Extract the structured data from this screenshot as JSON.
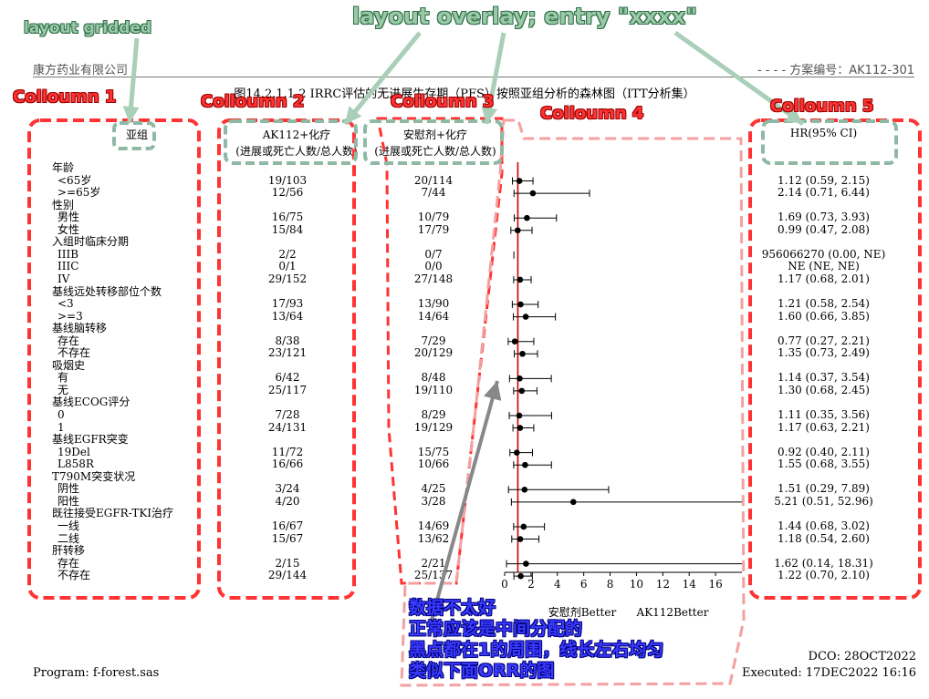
{
  "header": {
    "company": "康方药业有限公司",
    "protocol": "- - - - 方案编号：AK112-301"
  },
  "title": "图14.2.1.1.2 IRRC评估的无进展生存期（PFS）按照亚组分析的森林图（ITT分析集）",
  "columns": {
    "subgroup": "亚组",
    "arm1_line1": "AK112+化疗",
    "arm1_line2": "(进展或死亡人数/总人数)",
    "arm2_line1": "安慰剂+化疗",
    "arm2_line2": "(进展或死亡人数/总人数)",
    "hr": "HR(95% CI)"
  },
  "rows": [
    {
      "label": "年龄",
      "header": true
    },
    {
      "label": "<65岁",
      "a": "19/103",
      "b": "20/114",
      "hr": "1.12 (0.59, 2.15)"
    },
    {
      "label": ">=65岁",
      "a": "12/56",
      "b": "7/44",
      "hr": "2.14 (0.71, 6.44)"
    },
    {
      "label": "性别",
      "header": true
    },
    {
      "label": "男性",
      "a": "16/75",
      "b": "10/79",
      "hr": "1.69 (0.73, 3.93)"
    },
    {
      "label": "女性",
      "a": "15/84",
      "b": "17/79",
      "hr": "0.99 (0.47, 2.08)"
    },
    {
      "label": "入组时临床分期",
      "header": true
    },
    {
      "label": "IIIB",
      "a": "2/2",
      "b": "0/7",
      "hr": "956066270 (0.00, NE)"
    },
    {
      "label": "IIIC",
      "a": "0/1",
      "b": "0/0",
      "hr": "NE (NE, NE)"
    },
    {
      "label": "IV",
      "a": "29/152",
      "b": "27/148",
      "hr": "1.17 (0.68, 2.01)"
    },
    {
      "label": "基线远处转移部位个数",
      "header": true
    },
    {
      "label": "<3",
      "a": "17/93",
      "b": "13/90",
      "hr": "1.21 (0.58, 2.54)"
    },
    {
      "label": ">=3",
      "a": "13/64",
      "b": "14/64",
      "hr": "1.60 (0.66, 3.85)"
    },
    {
      "label": "基线脑转移",
      "header": true
    },
    {
      "label": "存在",
      "a": "8/38",
      "b": "7/29",
      "hr": "0.77 (0.27, 2.21)"
    },
    {
      "label": "不存在",
      "a": "23/121",
      "b": "20/129",
      "hr": "1.35 (0.73, 2.49)"
    },
    {
      "label": "吸烟史",
      "header": true
    },
    {
      "label": "有",
      "a": "6/42",
      "b": "8/48",
      "hr": "1.14 (0.37, 3.54)"
    },
    {
      "label": "无",
      "a": "25/117",
      "b": "19/110",
      "hr": "1.30 (0.68, 2.45)"
    },
    {
      "label": "基线ECOG评分",
      "header": true
    },
    {
      "label": "0",
      "a": "7/28",
      "b": "8/29",
      "hr": "1.11 (0.35, 3.56)"
    },
    {
      "label": "1",
      "a": "24/131",
      "b": "19/129",
      "hr": "1.17 (0.63, 2.21)"
    },
    {
      "label": "基线EGFR突变",
      "header": true
    },
    {
      "label": "19Del",
      "a": "11/72",
      "b": "15/75",
      "hr": "0.92 (0.40, 2.11)"
    },
    {
      "label": "L858R",
      "a": "16/66",
      "b": "10/66",
      "hr": "1.55 (0.68, 3.55)"
    },
    {
      "label": "T790M突变状况",
      "header": true
    },
    {
      "label": "阴性",
      "a": "3/24",
      "b": "4/25",
      "hr": "1.51 (0.29, 7.89)"
    },
    {
      "label": "阳性",
      "a": "4/20",
      "b": "3/28",
      "hr": "5.21 (0.51, 52.96)"
    },
    {
      "label": "既往接受EGFR-TKI治疗",
      "header": true
    },
    {
      "label": "一线",
      "a": "16/67",
      "b": "14/69",
      "hr": "1.44 (0.68, 3.02)"
    },
    {
      "label": "二线",
      "a": "15/67",
      "b": "13/62",
      "hr": "1.18 (0.54, 2.60)"
    },
    {
      "label": "肝转移",
      "header": true
    },
    {
      "label": "存在",
      "a": "2/15",
      "b": "2/21",
      "hr": "1.62 (0.14, 18.31)"
    },
    {
      "label": "不存在",
      "a": "29/144",
      "b": "25/137",
      "hr": "1.22 (0.70, 2.10)"
    }
  ],
  "chart_data": {
    "type": "forest",
    "xlim": [
      0,
      18
    ],
    "xticks": [
      0,
      2,
      4,
      6,
      8,
      10,
      12,
      14,
      16
    ],
    "reference_line": 1,
    "reference_color": "#cc0000",
    "xlabel_left": "安慰剂Better",
    "xlabel_right": "AK112Better",
    "points": [
      {
        "row": 1,
        "hr": 1.12,
        "lo": 0.59,
        "hi": 2.15
      },
      {
        "row": 2,
        "hr": 2.14,
        "lo": 0.71,
        "hi": 6.44
      },
      {
        "row": 4,
        "hr": 1.69,
        "lo": 0.73,
        "hi": 3.93
      },
      {
        "row": 5,
        "hr": 0.99,
        "lo": 0.47,
        "hi": 2.08
      },
      {
        "row": 7,
        "hr": 0.0,
        "lo": 0.0,
        "hi": 0.0,
        "tick_only": true
      },
      {
        "row": 9,
        "hr": 1.17,
        "lo": 0.68,
        "hi": 2.01
      },
      {
        "row": 11,
        "hr": 1.21,
        "lo": 0.58,
        "hi": 2.54
      },
      {
        "row": 12,
        "hr": 1.6,
        "lo": 0.66,
        "hi": 3.85
      },
      {
        "row": 14,
        "hr": 0.77,
        "lo": 0.27,
        "hi": 2.21
      },
      {
        "row": 15,
        "hr": 1.35,
        "lo": 0.73,
        "hi": 2.49
      },
      {
        "row": 17,
        "hr": 1.14,
        "lo": 0.37,
        "hi": 3.54
      },
      {
        "row": 18,
        "hr": 1.3,
        "lo": 0.68,
        "hi": 2.45
      },
      {
        "row": 20,
        "hr": 1.11,
        "lo": 0.35,
        "hi": 3.56
      },
      {
        "row": 21,
        "hr": 1.17,
        "lo": 0.63,
        "hi": 2.21
      },
      {
        "row": 23,
        "hr": 0.92,
        "lo": 0.4,
        "hi": 2.11
      },
      {
        "row": 24,
        "hr": 1.55,
        "lo": 0.68,
        "hi": 3.55
      },
      {
        "row": 26,
        "hr": 1.51,
        "lo": 0.29,
        "hi": 7.89
      },
      {
        "row": 27,
        "hr": 5.21,
        "lo": 0.51,
        "hi": 52.96
      },
      {
        "row": 29,
        "hr": 1.44,
        "lo": 0.68,
        "hi": 3.02
      },
      {
        "row": 30,
        "hr": 1.18,
        "lo": 0.54,
        "hi": 2.6
      },
      {
        "row": 32,
        "hr": 1.62,
        "lo": 0.14,
        "hi": 18.31
      },
      {
        "row": 33,
        "hr": 1.22,
        "lo": 0.7,
        "hi": 2.1
      }
    ]
  },
  "annotations": {
    "layout_gridded": "layout gridded",
    "layout_overlay": "layout overlay; entry \"xxxx\"",
    "col1": "Colloumn 1",
    "col2": "Colloumn 2",
    "col3": "Colloumn 3",
    "col4": "Colloumn 4",
    "col5": "Colloumn 5",
    "note_1": "数据不太好",
    "note_2": "正常应该是中间分配的",
    "note_3": "黑点都在1的周围，线长左右均匀",
    "note_4": "类似下面ORR的图",
    "green_color": "#9ac9a8",
    "red_color": "#ff3333",
    "blue_color": "#3a3aff"
  },
  "footer": {
    "dco": "DCO: 28OCT2022",
    "program": "Program: f-forest.sas",
    "executed": "Executed: 17DEC2022 16:16"
  }
}
